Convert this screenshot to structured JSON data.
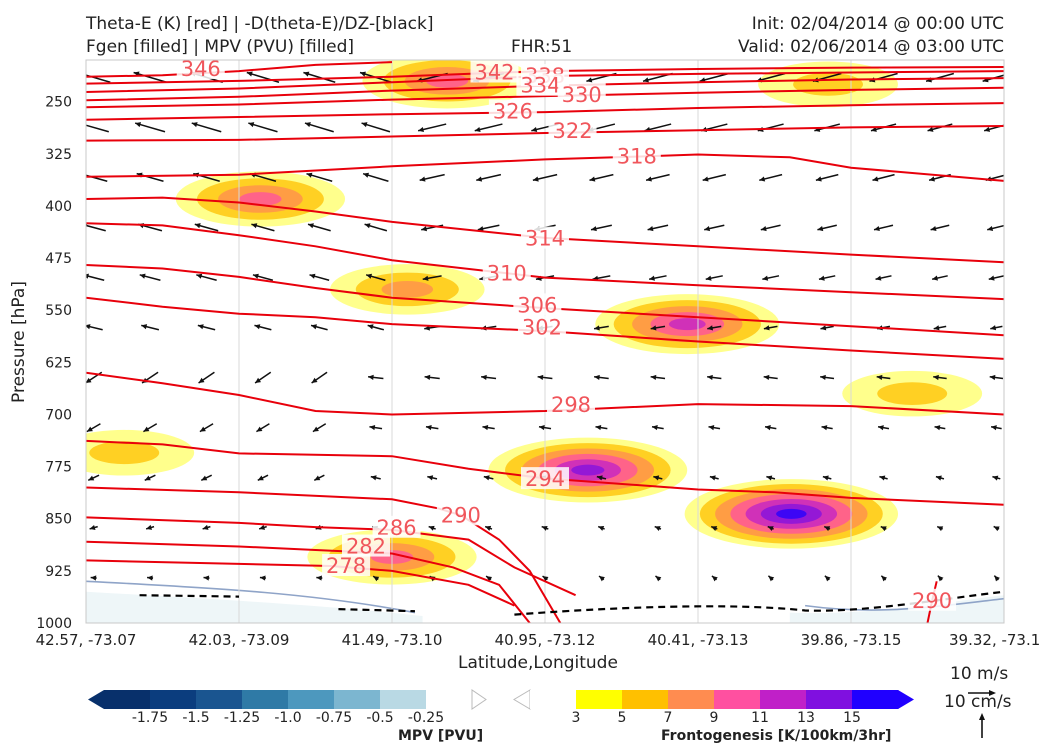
{
  "header": {
    "title_line1": "Theta-E (K) [red] | -D(theta-E)/DZ-[black]",
    "title_line2": "Fgen [filled] | MPV (PVU) [filled]",
    "fhr": "FHR:51",
    "init": "Init: 02/04/2014 @ 00:00 UTC",
    "valid": "Valid: 02/06/2014 @ 03:00 UTC"
  },
  "chart_data": {
    "type": "contour",
    "ylabel": "Pressure [hPa]",
    "xlabel": "Latitude,Longitude",
    "y_ticks": [
      "250",
      "325",
      "400",
      "475",
      "550",
      "625",
      "700",
      "775",
      "850",
      "925",
      "1000"
    ],
    "y_tick_values": [
      250,
      325,
      400,
      475,
      550,
      625,
      700,
      775,
      850,
      925,
      1000
    ],
    "ylim": [
      1000,
      190
    ],
    "x_ticks": [
      "42.57, -73.07",
      "42.03, -73.09",
      "41.49, -73.10",
      "40.95, -73.12",
      "40.41, -73.13",
      "39.86, -73.15",
      "39.32, -73.1"
    ],
    "x_tick_values": [
      0,
      1,
      2,
      3,
      4,
      5,
      6
    ],
    "xlim": [
      0,
      6
    ],
    "theta_e_contours": [
      {
        "level": "346",
        "label": "346",
        "label_at": [
          0.75,
          203
        ],
        "points": [
          [
            0,
            214
          ],
          [
            0.5,
            212
          ],
          [
            1,
            206
          ],
          [
            1.5,
            197
          ],
          [
            2,
            193
          ]
        ]
      },
      {
        "level": "342",
        "label": "342",
        "label_at": [
          2.67,
          208
        ],
        "points": [
          [
            0,
            224
          ],
          [
            1,
            220
          ],
          [
            2,
            214
          ],
          [
            2.6,
            209
          ],
          [
            3,
            206
          ],
          [
            4,
            203
          ],
          [
            5,
            201
          ],
          [
            6,
            200
          ]
        ]
      },
      {
        "level": "338",
        "label": "338",
        "label_at": [
          3.0,
          213
        ],
        "points": [
          [
            0,
            236
          ],
          [
            1,
            231
          ],
          [
            2,
            222
          ],
          [
            3,
            213
          ],
          [
            4,
            210
          ],
          [
            5,
            208
          ],
          [
            6,
            206
          ]
        ]
      },
      {
        "level": "334",
        "label": "334",
        "label_at": [
          2.97,
          227
        ],
        "points": [
          [
            0,
            248
          ],
          [
            1,
            243
          ],
          [
            2,
            234
          ],
          [
            3,
            227
          ],
          [
            4,
            222
          ],
          [
            5,
            218
          ],
          [
            6,
            216
          ]
        ]
      },
      {
        "level": "330",
        "label": "330",
        "label_at": [
          3.24,
          240
        ],
        "points": [
          [
            0,
            258
          ],
          [
            1,
            254
          ],
          [
            2,
            247
          ],
          [
            3,
            242
          ],
          [
            4,
            237
          ],
          [
            5,
            233
          ],
          [
            6,
            230
          ]
        ]
      },
      {
        "level": "326",
        "label": "326",
        "label_at": [
          2.79,
          264
        ],
        "points": [
          [
            0,
            276
          ],
          [
            1,
            272
          ],
          [
            2,
            268
          ],
          [
            3,
            265
          ],
          [
            4,
            259
          ],
          [
            5,
            255
          ],
          [
            6,
            252
          ]
        ]
      },
      {
        "level": "322",
        "label": "322",
        "label_at": [
          3.18,
          292
        ],
        "points": [
          [
            0,
            306
          ],
          [
            1,
            305
          ],
          [
            2,
            300
          ],
          [
            3,
            295
          ],
          [
            4,
            291
          ],
          [
            5,
            287
          ],
          [
            6,
            285
          ]
        ]
      },
      {
        "level": "318",
        "label": "318",
        "label_at": [
          3.6,
          329
        ],
        "points": [
          [
            0,
            358
          ],
          [
            1,
            355
          ],
          [
            2,
            343
          ],
          [
            3,
            333
          ],
          [
            3.6,
            329
          ],
          [
            4,
            326
          ],
          [
            4.6,
            330
          ],
          [
            5,
            345
          ],
          [
            6,
            364
          ]
        ]
      },
      {
        "level": "314",
        "label": "314",
        "label_at": [
          3.0,
          447
        ],
        "points": [
          [
            0,
            390
          ],
          [
            0.5,
            388
          ],
          [
            1,
            395
          ],
          [
            1.5,
            408
          ],
          [
            2,
            423
          ],
          [
            3,
            446
          ],
          [
            4,
            458
          ],
          [
            5,
            470
          ],
          [
            6,
            481
          ]
        ]
      },
      {
        "level": "310",
        "label": "310",
        "label_at": [
          2.75,
          497
        ],
        "points": [
          [
            0,
            425
          ],
          [
            0.5,
            428
          ],
          [
            1,
            442
          ],
          [
            1.5,
            458
          ],
          [
            2,
            478
          ],
          [
            3,
            503
          ],
          [
            4,
            514
          ],
          [
            5,
            524
          ],
          [
            6,
            534
          ]
        ]
      },
      {
        "level": "306",
        "label": "306",
        "label_at": [
          2.95,
          543
        ],
        "points": [
          [
            0,
            485
          ],
          [
            0.5,
            490
          ],
          [
            1,
            502
          ],
          [
            1.5,
            518
          ],
          [
            2,
            532
          ],
          [
            3,
            547
          ],
          [
            4,
            560
          ],
          [
            5,
            573
          ],
          [
            6,
            586
          ]
        ]
      },
      {
        "level": "302",
        "label": "302",
        "label_at": [
          2.98,
          575
        ],
        "points": [
          [
            0,
            532
          ],
          [
            0.5,
            545
          ],
          [
            1,
            555
          ],
          [
            1.5,
            560
          ],
          [
            2,
            570
          ],
          [
            3,
            580
          ],
          [
            4,
            595
          ],
          [
            5,
            608
          ],
          [
            6,
            620
          ]
        ]
      },
      {
        "level": "298",
        "label": "298",
        "label_at": [
          3.17,
          686
        ],
        "points": [
          [
            0,
            640
          ],
          [
            0.5,
            655
          ],
          [
            1,
            672
          ],
          [
            1.5,
            695
          ],
          [
            2,
            700
          ],
          [
            3,
            695
          ],
          [
            4,
            685
          ],
          [
            5,
            688
          ],
          [
            6,
            700
          ]
        ]
      },
      {
        "level": "294",
        "label": "294",
        "label_at": [
          3.0,
          793
        ],
        "points": [
          [
            0,
            738
          ],
          [
            0.5,
            743
          ],
          [
            1,
            756
          ],
          [
            2,
            760
          ],
          [
            2.5,
            778
          ],
          [
            3,
            792
          ],
          [
            4,
            808
          ],
          [
            4.5,
            812
          ],
          [
            5,
            820
          ],
          [
            6,
            830
          ]
        ]
      },
      {
        "level": "290",
        "label": "290",
        "label_at": [
          2.45,
          845
        ],
        "points": [
          [
            0,
            805
          ],
          [
            1,
            812
          ],
          [
            2,
            822
          ],
          [
            2.3,
            835
          ],
          [
            2.45,
            845
          ],
          [
            2.7,
            880
          ],
          [
            2.9,
            925
          ],
          [
            3.1,
            1000
          ]
        ]
      },
      {
        "level": "290",
        "label": "290",
        "label_at": [
          5.53,
          968
        ],
        "points": [
          [
            5.5,
            1000
          ],
          [
            5.53,
            968
          ],
          [
            5.56,
            940
          ]
        ]
      },
      {
        "level": "286",
        "label": "286",
        "label_at": [
          2.03,
          863
        ],
        "points": [
          [
            0,
            848
          ],
          [
            1,
            856
          ],
          [
            1.5,
            862
          ],
          [
            2,
            866
          ],
          [
            2.5,
            880
          ],
          [
            2.8,
            920
          ],
          [
            3.2,
            960
          ]
        ]
      },
      {
        "level": "282",
        "label": "282",
        "label_at": [
          1.83,
          890
        ],
        "points": [
          [
            0,
            883
          ],
          [
            1,
            890
          ],
          [
            1.5,
            895
          ],
          [
            2,
            900
          ],
          [
            2.4,
            920
          ],
          [
            2.7,
            945
          ],
          [
            2.9,
            1000
          ]
        ]
      },
      {
        "level": "278",
        "label": "278",
        "label_at": [
          1.7,
          918
        ],
        "points": [
          [
            0,
            910
          ],
          [
            1,
            915
          ],
          [
            1.6,
            918
          ],
          [
            2,
            925
          ],
          [
            2.5,
            945
          ],
          [
            2.8,
            975
          ]
        ]
      }
    ],
    "frontogenesis_levels": [
      3,
      5,
      7,
      9,
      11,
      13,
      15
    ],
    "mpv_levels": [
      -1.75,
      -1.5,
      -1.25,
      -1.0,
      -0.75,
      -0.5,
      -0.25
    ],
    "frontogenesis_maxima": [
      {
        "x": 3.28,
        "p": 780,
        "value": 13
      },
      {
        "x": 4.61,
        "p": 843,
        "value": 15
      },
      {
        "x": 3.93,
        "p": 570,
        "value": 11
      },
      {
        "x": 1.14,
        "p": 390,
        "value": 9
      },
      {
        "x": 2.36,
        "p": 220,
        "value": 9
      },
      {
        "x": 2.0,
        "p": 905,
        "value": 9
      },
      {
        "x": 0.25,
        "p": 755,
        "value": 5
      },
      {
        "x": 5.4,
        "p": 670,
        "value": 5
      },
      {
        "x": 4.85,
        "p": 225,
        "value": 5
      },
      {
        "x": 2.1,
        "p": 520,
        "value": 7
      }
    ],
    "cbar_mpv_label": "MPV [PVU]",
    "cbar_mpv_ticks": [
      "-1.75",
      "-1.5",
      "-1.25",
      "-1.0",
      "-0.75",
      "-0.5",
      "-0.25"
    ],
    "cbar_fgen_label": "Frontogenesis [K/100km/3hr]",
    "cbar_fgen_ticks": [
      "3",
      "5",
      "7",
      "9",
      "11",
      "13",
      "15"
    ],
    "wind_key_u": "10 m/s",
    "wind_key_w": "10 cm/s",
    "grid": true,
    "colors": {
      "theta_e": "#e8000b",
      "theta_e_label": "#f0555b",
      "stability": "#000000",
      "mpv": [
        "#08306b",
        "#0b3d7e",
        "#1a5590",
        "#2f7aa6",
        "#4d98be",
        "#7cb6d0",
        "#b9d9e4",
        "#ffffff"
      ],
      "fgen": [
        "#ffffff",
        "#ffff00",
        "#ffc000",
        "#ff8c50",
        "#ff50a0",
        "#c020c8",
        "#8010e0",
        "#2000ff"
      ]
    }
  }
}
